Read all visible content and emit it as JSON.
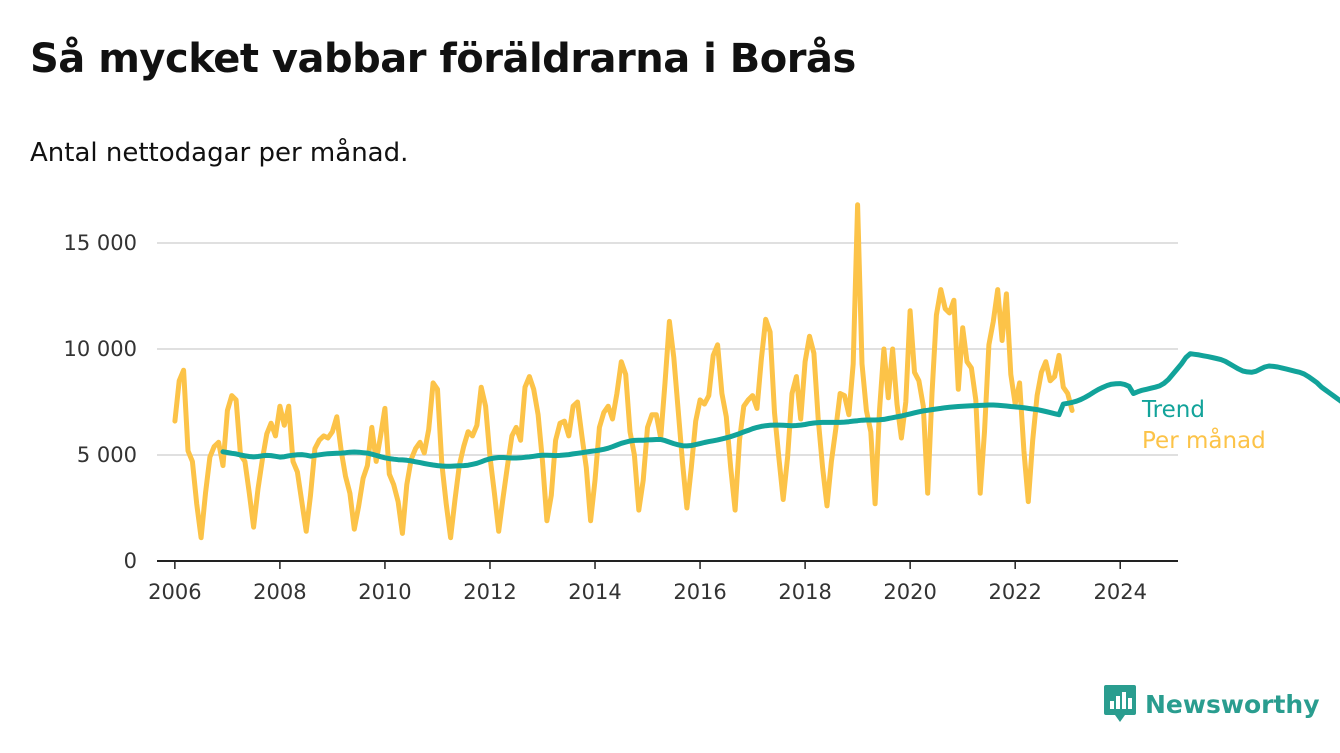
{
  "title": "Så mycket vabbar föräldrarna i Borås",
  "subtitle": "Antal nettodagar per månad.",
  "brand": {
    "name": "Newsworthy",
    "icon": "newsworthy-logo-icon",
    "color": "#2a9d8f"
  },
  "chart_data": {
    "type": "line",
    "xlim": [
      2005.66,
      2025.1
    ],
    "ylim": [
      0,
      17500
    ],
    "x_ticks": [
      2006,
      2008,
      2010,
      2012,
      2014,
      2016,
      2018,
      2020,
      2022,
      2024
    ],
    "x_tick_labels": [
      "2006",
      "2008",
      "2010",
      "2012",
      "2014",
      "2016",
      "2018",
      "2020",
      "2022",
      "2024"
    ],
    "y_ticks": [
      0,
      5000,
      10000,
      15000
    ],
    "y_tick_labels": [
      "0",
      "5 000",
      "10 000",
      "15 000"
    ],
    "grid": "horizontal",
    "legend": "end-of-line labels, right",
    "series": [
      {
        "name": "Per månad",
        "color": "#fcc348",
        "x_start": 2006.0,
        "step": 0.0833333,
        "values": [
          6600,
          8500,
          9000,
          5200,
          4700,
          2700,
          1100,
          3200,
          4900,
          5400,
          5600,
          4500,
          7100,
          7800,
          7600,
          5000,
          4700,
          3200,
          1600,
          3400,
          4800,
          6000,
          6500,
          5900,
          7300,
          6400,
          7300,
          4700,
          4200,
          2800,
          1400,
          3100,
          5300,
          5700,
          5900,
          5800,
          6100,
          6800,
          5200,
          4000,
          3200,
          1500,
          2600,
          3900,
          4500,
          6300,
          4700,
          5900,
          7200,
          4100,
          3600,
          2800,
          1300,
          3600,
          4800,
          5300,
          5600,
          5100,
          6200,
          8400,
          8100,
          4600,
          2700,
          1100,
          2900,
          4500,
          5400,
          6100,
          5900,
          6400,
          8200,
          7300,
          4900,
          3200,
          1400,
          3000,
          4500,
          5900,
          6300,
          5700,
          8200,
          8700,
          8100,
          6900,
          4700,
          1900,
          3100,
          5700,
          6500,
          6600,
          5900,
          7300,
          7500,
          5900,
          4400,
          1900,
          3800,
          6300,
          7000,
          7300,
          6700,
          7900,
          9400,
          8800,
          6100,
          5000,
          2400,
          3800,
          6300,
          6900,
          6900,
          5800,
          8400,
          11300,
          9600,
          7100,
          4600,
          2500,
          4400,
          6600,
          7600,
          7400,
          7800,
          9700,
          10200,
          7900,
          6800,
          4400,
          2400,
          5700,
          7300,
          7600,
          7800,
          7200,
          9500,
          11400,
          10800,
          7000,
          4900,
          2900,
          4900,
          7900,
          8700,
          6700,
          9400,
          10600,
          9800,
          6700,
          4400,
          2600,
          4700,
          6200,
          7900,
          7800,
          6900,
          9300,
          16800,
          9300,
          7100,
          6100,
          2700,
          7100,
          10000,
          7700,
          10000,
          7400,
          5800,
          7500,
          11800,
          8900,
          8500,
          7300,
          3200,
          7900,
          11600,
          12800,
          11900,
          11700,
          12300,
          8100,
          11000,
          9400,
          9100,
          7600,
          3200,
          6100,
          10200,
          11300,
          12800,
          10400,
          12600,
          8800,
          7400,
          8400,
          5200,
          2800,
          5700,
          7800,
          8900,
          9400,
          8500,
          8700,
          9700,
          8200,
          7900,
          7100
        ]
      },
      {
        "name": "Trend",
        "color": "#12a39a",
        "x_start": 2006.9167,
        "step": 0.0833333,
        "values": [
          5150,
          5120,
          5080,
          5050,
          5000,
          4960,
          4930,
          4910,
          4930,
          4960,
          4980,
          4970,
          4940,
          4900,
          4920,
          4960,
          4990,
          5010,
          5020,
          4990,
          4950,
          4980,
          5010,
          5040,
          5060,
          5070,
          5080,
          5090,
          5110,
          5130,
          5140,
          5130,
          5110,
          5090,
          5040,
          4980,
          4920,
          4870,
          4830,
          4800,
          4780,
          4770,
          4750,
          4720,
          4680,
          4640,
          4600,
          4560,
          4530,
          4500,
          4480,
          4470,
          4470,
          4480,
          4490,
          4500,
          4520,
          4560,
          4610,
          4680,
          4760,
          4820,
          4860,
          4880,
          4880,
          4870,
          4860,
          4860,
          4870,
          4890,
          4910,
          4940,
          4970,
          4990,
          4990,
          4980,
          4970,
          4980,
          5000,
          5020,
          5050,
          5080,
          5110,
          5140,
          5170,
          5200,
          5230,
          5270,
          5320,
          5390,
          5470,
          5550,
          5610,
          5660,
          5690,
          5700,
          5700,
          5710,
          5720,
          5730,
          5730,
          5680,
          5610,
          5540,
          5480,
          5440,
          5430,
          5450,
          5490,
          5540,
          5590,
          5630,
          5670,
          5710,
          5760,
          5810,
          5870,
          5940,
          6010,
          6090,
          6160,
          6240,
          6300,
          6350,
          6380,
          6400,
          6410,
          6410,
          6400,
          6390,
          6380,
          6390,
          6410,
          6440,
          6480,
          6510,
          6530,
          6540,
          6540,
          6540,
          6540,
          6540,
          6550,
          6570,
          6600,
          6620,
          6640,
          6650,
          6650,
          6650,
          6660,
          6680,
          6720,
          6760,
          6800,
          6840,
          6890,
          6940,
          6990,
          7040,
          7080,
          7110,
          7140,
          7170,
          7200,
          7230,
          7250,
          7270,
          7290,
          7300,
          7310,
          7320,
          7330,
          7340,
          7350,
          7360,
          7360,
          7350,
          7330,
          7310,
          7290,
          7270,
          7250,
          7230,
          7200,
          7170,
          7140,
          7100,
          7050,
          7000,
          6950,
          6900,
          7400,
          7440,
          7480,
          7540,
          7620,
          7720,
          7840,
          7970,
          8090,
          8190,
          8280,
          8340,
          8360,
          8370,
          8330,
          8240,
          7900,
          7980,
          8050,
          8100,
          8150,
          8200,
          8260,
          8380,
          8560,
          8800,
          9050,
          9300,
          9600,
          9780,
          9750,
          9720,
          9680,
          9640,
          9600,
          9550,
          9500,
          9420,
          9300,
          9180,
          9060,
          8960,
          8920,
          8900,
          8950,
          9050,
          9150,
          9200,
          9180,
          9150,
          9100,
          9050,
          9000,
          8950,
          8900,
          8820,
          8700,
          8550,
          8400,
          8200,
          8050,
          7900,
          7750,
          7600,
          7450,
          7400
        ]
      }
    ]
  }
}
